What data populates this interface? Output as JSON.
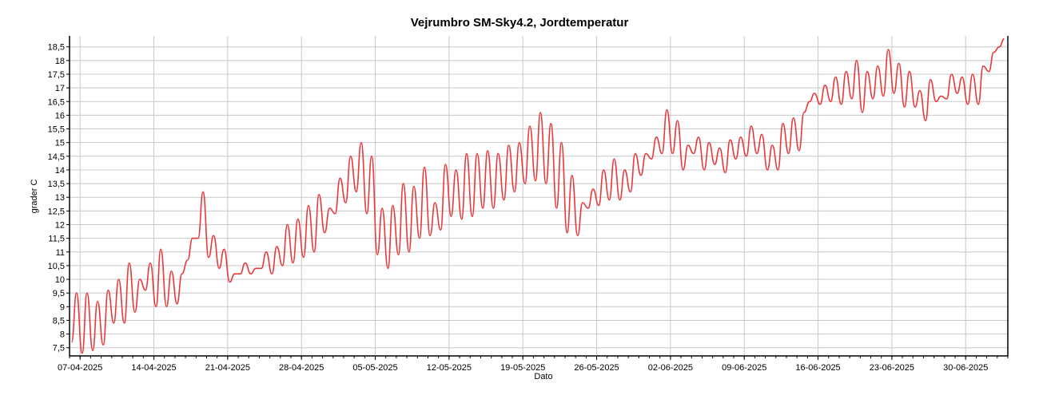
{
  "chart_data": {
    "type": "line",
    "title": "Vejrumbro SM-Sky4.2, Jordtemperatur",
    "xlabel": "Dato",
    "ylabel": "grader C",
    "x_ticks": [
      "07-04-2025",
      "14-04-2025",
      "21-04-2025",
      "28-04-2025",
      "05-05-2025",
      "12-05-2025",
      "19-05-2025",
      "26-05-2025",
      "02-06-2025",
      "09-06-2025",
      "16-06-2025",
      "23-06-2025",
      "30-06-2025"
    ],
    "y_ticks": [
      "7,5",
      "8",
      "8,5",
      "9",
      "9,5",
      "10",
      "10,5",
      "11",
      "11,5",
      "12",
      "12,5",
      "13",
      "13,5",
      "14",
      "14,5",
      "15",
      "15,5",
      "16",
      "16,5",
      "17",
      "17,5",
      "18",
      "18,5"
    ],
    "ylim": [
      7.2,
      18.9
    ],
    "xlim": [
      "2025-04-06",
      "2025-07-04"
    ],
    "grid": true,
    "series": [
      {
        "color": "#e8383b",
        "x": [
          "2025-04-06",
          "2025-04-07",
          "2025-04-08",
          "2025-04-09",
          "2025-04-10",
          "2025-04-11",
          "2025-04-12",
          "2025-04-13",
          "2025-04-14",
          "2025-04-15",
          "2025-04-16",
          "2025-04-17",
          "2025-04-18",
          "2025-04-19",
          "2025-04-20",
          "2025-04-21",
          "2025-04-22",
          "2025-04-23",
          "2025-04-24",
          "2025-04-25",
          "2025-04-26",
          "2025-04-27",
          "2025-04-28",
          "2025-04-29",
          "2025-04-30",
          "2025-05-01",
          "2025-05-02",
          "2025-05-03",
          "2025-05-04",
          "2025-05-05",
          "2025-05-06",
          "2025-05-07",
          "2025-05-08",
          "2025-05-09",
          "2025-05-10",
          "2025-05-11",
          "2025-05-12",
          "2025-05-13",
          "2025-05-14",
          "2025-05-15",
          "2025-05-16",
          "2025-05-17",
          "2025-05-18",
          "2025-05-19",
          "2025-05-20",
          "2025-05-21",
          "2025-05-22",
          "2025-05-23",
          "2025-05-24",
          "2025-05-25",
          "2025-05-26",
          "2025-05-27",
          "2025-05-28",
          "2025-05-29",
          "2025-05-30",
          "2025-05-31",
          "2025-06-01",
          "2025-06-02",
          "2025-06-03",
          "2025-06-04",
          "2025-06-05",
          "2025-06-06",
          "2025-06-07",
          "2025-06-08",
          "2025-06-09",
          "2025-06-10",
          "2025-06-11",
          "2025-06-12",
          "2025-06-13",
          "2025-06-14",
          "2025-06-15",
          "2025-06-16",
          "2025-06-17",
          "2025-06-18",
          "2025-06-19",
          "2025-06-20",
          "2025-06-21",
          "2025-06-22",
          "2025-06-23",
          "2025-06-24",
          "2025-06-25",
          "2025-06-26",
          "2025-06-27",
          "2025-06-28",
          "2025-06-29",
          "2025-06-30",
          "2025-07-01",
          "2025-07-02",
          "2025-07-03"
        ],
        "hi": [
          9.5,
          9.5,
          9.2,
          9.6,
          10.0,
          10.6,
          10.0,
          10.6,
          11.1,
          10.3,
          10.2,
          11.5,
          13.2,
          11.6,
          11.1,
          10.2,
          10.6,
          10.4,
          11.0,
          11.2,
          12.0,
          12.2,
          12.7,
          13.1,
          12.6,
          13.7,
          14.5,
          15.0,
          14.5,
          12.6,
          12.7,
          13.5,
          13.4,
          14.1,
          12.8,
          14.2,
          14.0,
          14.6,
          14.6,
          14.7,
          14.6,
          14.9,
          15.0,
          15.6,
          16.1,
          15.7,
          15.0,
          13.8,
          12.8,
          13.3,
          14.0,
          14.4,
          14.0,
          14.6,
          14.6,
          15.2,
          16.2,
          15.8,
          14.9,
          15.2,
          15.0,
          14.8,
          15.1,
          15.2,
          15.6,
          15.3,
          14.9,
          15.7,
          15.9,
          16.1,
          16.8,
          17.1,
          17.4,
          17.6,
          18.0,
          17.6,
          17.8,
          18.4,
          17.9,
          17.6,
          16.9,
          17.3,
          16.7,
          17.5,
          17.4,
          17.5,
          17.8,
          18.3,
          18.8
        ],
        "lo": [
          7.7,
          7.3,
          7.4,
          7.6,
          8.4,
          8.4,
          8.8,
          9.6,
          9.0,
          9.0,
          9.1,
          10.7,
          11.5,
          10.8,
          10.4,
          9.9,
          10.2,
          10.2,
          10.4,
          10.2,
          10.5,
          10.6,
          10.8,
          11.0,
          11.7,
          12.4,
          12.8,
          13.2,
          12.4,
          10.9,
          10.4,
          10.9,
          11.0,
          11.5,
          11.6,
          11.8,
          12.3,
          12.2,
          12.3,
          12.6,
          12.6,
          12.9,
          13.2,
          13.5,
          13.6,
          13.5,
          12.6,
          11.7,
          11.6,
          12.6,
          12.7,
          12.9,
          12.9,
          13.2,
          13.8,
          14.4,
          14.6,
          14.6,
          14.0,
          14.6,
          14.0,
          14.2,
          13.9,
          14.4,
          14.5,
          14.6,
          14.0,
          14.0,
          14.6,
          14.7,
          16.5,
          16.4,
          16.5,
          16.4,
          16.6,
          16.1,
          16.6,
          16.7,
          16.8,
          16.3,
          16.3,
          15.8,
          16.5,
          16.6,
          16.8,
          16.4,
          16.4,
          17.6,
          18.5
        ]
      }
    ]
  }
}
